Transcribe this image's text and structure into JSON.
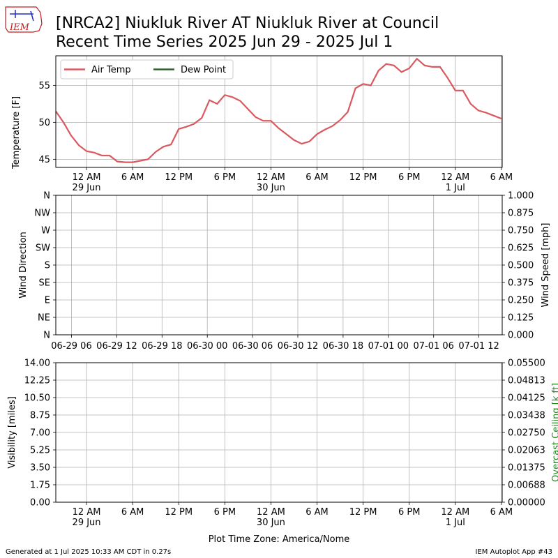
{
  "title_line1": "[NRCA2] Niukluk River  AT Niukluk River at Council",
  "title_line2": "Recent Time Series 2025 Jun 29 - 2025 Jul 1",
  "logo_text": "IEM",
  "footer_left": "Generated at 1 Jul 2025 10:33 AM CDT in 0.27s",
  "footer_right": "IEM Autoplot App #43",
  "xlabel": "Plot Time Zone: America/Nome",
  "colors": {
    "air_temp": "#d9595e",
    "dew_point": "#2d5f2d",
    "ceiling_label": "#1e8a1e",
    "grid": "#b0b0b0"
  },
  "chart_data": [
    {
      "type": "line",
      "ylabel": "Temperature [F]",
      "ylim": [
        43.9,
        59.0
      ],
      "yticks": [
        "45",
        "50",
        "55"
      ],
      "ytick_values": [
        45,
        50,
        55
      ],
      "grid": true,
      "legend_placement": "top-left",
      "x_ticks": [
        {
          "hour": 0,
          "label": "12 AM",
          "sub": "29 Jun"
        },
        {
          "hour": 6,
          "label": "6 AM",
          "sub": ""
        },
        {
          "hour": 12,
          "label": "12 PM",
          "sub": ""
        },
        {
          "hour": 18,
          "label": "6 PM",
          "sub": ""
        },
        {
          "hour": 24,
          "label": "12 AM",
          "sub": "30 Jun"
        },
        {
          "hour": 30,
          "label": "6 AM",
          "sub": ""
        },
        {
          "hour": 36,
          "label": "12 PM",
          "sub": ""
        },
        {
          "hour": 42,
          "label": "6 PM",
          "sub": ""
        },
        {
          "hour": 48,
          "label": "12 AM",
          "sub": "1 Jul"
        },
        {
          "hour": 54,
          "label": "6 AM",
          "sub": ""
        }
      ],
      "xlim_hours": [
        -4,
        54.1
      ],
      "series": [
        {
          "name": "Air Temp",
          "x_hours": [
            -4,
            -3,
            -2,
            -1,
            0,
            1,
            2,
            3,
            4,
            5,
            6,
            7,
            8,
            9,
            10,
            11,
            12,
            13,
            14,
            15,
            16,
            17,
            18,
            19,
            20,
            21,
            22,
            23,
            24,
            25,
            26,
            27,
            28,
            29,
            30,
            31,
            32,
            33,
            34,
            35,
            36,
            37,
            38,
            39,
            40,
            41,
            42,
            43,
            44,
            45,
            46,
            47,
            48,
            49,
            50,
            51,
            52,
            53,
            54
          ],
          "values": [
            51.5,
            50.0,
            48.2,
            46.9,
            46.1,
            45.9,
            45.5,
            45.5,
            44.7,
            44.6,
            44.6,
            44.8,
            45.0,
            46.0,
            46.7,
            47.0,
            49.1,
            49.4,
            49.8,
            50.6,
            53.0,
            52.5,
            53.7,
            53.4,
            52.9,
            51.8,
            50.7,
            50.2,
            50.2,
            49.2,
            48.4,
            47.6,
            47.1,
            47.4,
            48.4,
            49.0,
            49.5,
            50.3,
            51.4,
            54.6,
            55.2,
            55.0,
            57.0,
            57.9,
            57.7,
            56.8,
            57.3,
            58.6,
            57.7,
            57.5,
            57.5,
            56.0,
            54.3,
            54.3,
            52.5,
            51.6,
            51.3,
            50.9,
            50.5
          ]
        },
        {
          "name": "Dew Point",
          "x_hours": [],
          "values": []
        }
      ]
    },
    {
      "type": "line",
      "ylabel_left": "Wind Direction",
      "ylabel_right": "Wind Speed [mph]",
      "yticks_left": [
        "N",
        "NE",
        "E",
        "SE",
        "S",
        "SW",
        "W",
        "NW",
        "N"
      ],
      "yticks_right": [
        "0.000",
        "0.125",
        "0.250",
        "0.375",
        "0.500",
        "0.625",
        "0.750",
        "0.875",
        "1.000"
      ],
      "x_ticks": [
        "06-29 06",
        "06-29 12",
        "06-29 18",
        "06-30 00",
        "06-30 06",
        "06-30 12",
        "06-30 18",
        "07-01 00",
        "07-01 06",
        "07-01 12"
      ],
      "grid": true,
      "series": []
    },
    {
      "type": "line",
      "ylabel_left": "Visibility [miles]",
      "ylabel_right": "Overcast Ceiling [k ft]",
      "yticks_left": [
        "0.00",
        "1.75",
        "3.50",
        "5.25",
        "7.00",
        "8.75",
        "10.50",
        "12.25",
        "14.00"
      ],
      "yticks_right": [
        "0.00000",
        "0.00688",
        "0.01375",
        "0.02063",
        "0.02750",
        "0.03438",
        "0.04125",
        "0.04813",
        "0.05500"
      ],
      "x_ticks": [
        {
          "label": "12 AM",
          "sub": "29 Jun"
        },
        {
          "label": "6 AM",
          "sub": ""
        },
        {
          "label": "12 PM",
          "sub": ""
        },
        {
          "label": "6 PM",
          "sub": ""
        },
        {
          "label": "12 AM",
          "sub": "30 Jun"
        },
        {
          "label": "6 AM",
          "sub": ""
        },
        {
          "label": "12 PM",
          "sub": ""
        },
        {
          "label": "6 PM",
          "sub": ""
        },
        {
          "label": "12 AM",
          "sub": "1 Jul"
        },
        {
          "label": "6 AM",
          "sub": ""
        }
      ],
      "grid": true,
      "series": []
    }
  ]
}
